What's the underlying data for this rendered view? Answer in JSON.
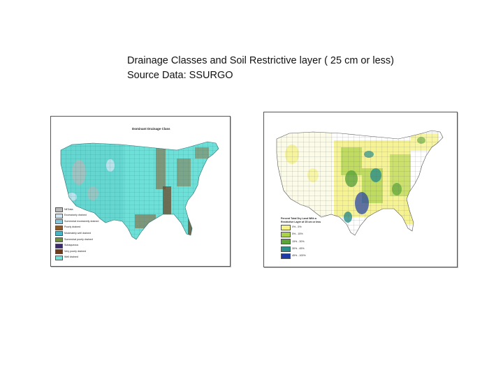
{
  "slide": {
    "title_line1": "Drainage Classes and Soil Restrictive layer ( 25 cm or less)",
    "title_line2": "Source Data: SSURGO"
  },
  "map_left": {
    "title": "Dominant Drainage Class",
    "legend": [
      {
        "label": "Nil'Data",
        "color": "#b9b9b9"
      },
      {
        "label": "Excessively drained",
        "color": "#cfe6f2"
      },
      {
        "label": "Somewhat excessively drained",
        "color": "#7ec8e0"
      },
      {
        "label": "Poorly drained",
        "color": "#8a5a2b"
      },
      {
        "label": "Moderately well drained",
        "color": "#49b4c4"
      },
      {
        "label": "Somewhat poorly drained",
        "color": "#6f8f3a"
      },
      {
        "label": "Subaqueous",
        "color": "#3a2a6a"
      },
      {
        "label": "Very poorly drained",
        "color": "#6b3b1b"
      },
      {
        "label": "Well drained",
        "color": "#6fe0d8"
      }
    ]
  },
  "map_right": {
    "title": "Percent Total Dry Land With a Restrictive Layer of 25 cm or less",
    "legend": [
      {
        "label": "0% - 5%",
        "color": "#f5f28a"
      },
      {
        "label": "5% - 15%",
        "color": "#a8d24a"
      },
      {
        "label": "15% - 30%",
        "color": "#5aa43a"
      },
      {
        "label": "30% - 45%",
        "color": "#2a8f8a"
      },
      {
        "label": "45% - 100%",
        "color": "#1c3aa8"
      }
    ]
  }
}
